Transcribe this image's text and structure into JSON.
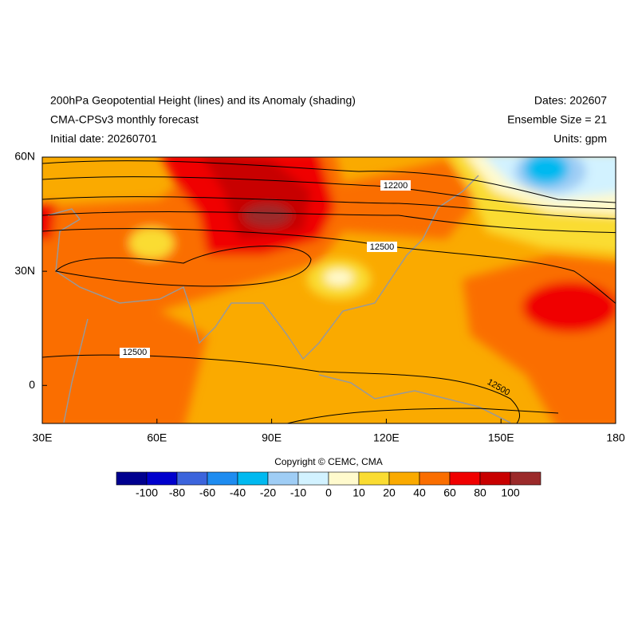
{
  "header": {
    "title": "200hPa Geopotential Height (lines) and its Anomaly (shading)",
    "subtitle": "CMA-CPSv3 monthly forecast",
    "initial": "Initial date: 20260701",
    "dates": "Dates: 202607",
    "ensemble": "Ensemble Size = 21",
    "units": "Units: gpm"
  },
  "map": {
    "xlim": [
      30,
      180
    ],
    "ylim": [
      -10,
      60
    ],
    "xticks": [
      {
        "value": 30,
        "label": "30E"
      },
      {
        "value": 60,
        "label": "60E"
      },
      {
        "value": 90,
        "label": "90E"
      },
      {
        "value": 120,
        "label": "120E"
      },
      {
        "value": 150,
        "label": "150E"
      },
      {
        "value": 180,
        "label": "180"
      }
    ],
    "yticks": [
      {
        "value": 60,
        "label": "60N"
      },
      {
        "value": 30,
        "label": "30N"
      },
      {
        "value": 0,
        "label": "0"
      }
    ],
    "contour_labels": [
      "12200",
      "12500",
      "12500",
      "12500"
    ]
  },
  "colorbar": {
    "levels": [
      -100,
      -80,
      -60,
      -40,
      -20,
      -10,
      0,
      10,
      20,
      40,
      60,
      80,
      100
    ],
    "colors": [
      "#00008f",
      "#0000cd",
      "#3c64dc",
      "#1e8cf0",
      "#00b9f0",
      "#9fcdf5",
      "#d2f2ff",
      "#fffacd",
      "#fadc32",
      "#faaa00",
      "#fa6e00",
      "#f00000",
      "#c80000",
      "#9b2a2a"
    ]
  },
  "copyright": "Copyright © CEMC, CMA"
}
